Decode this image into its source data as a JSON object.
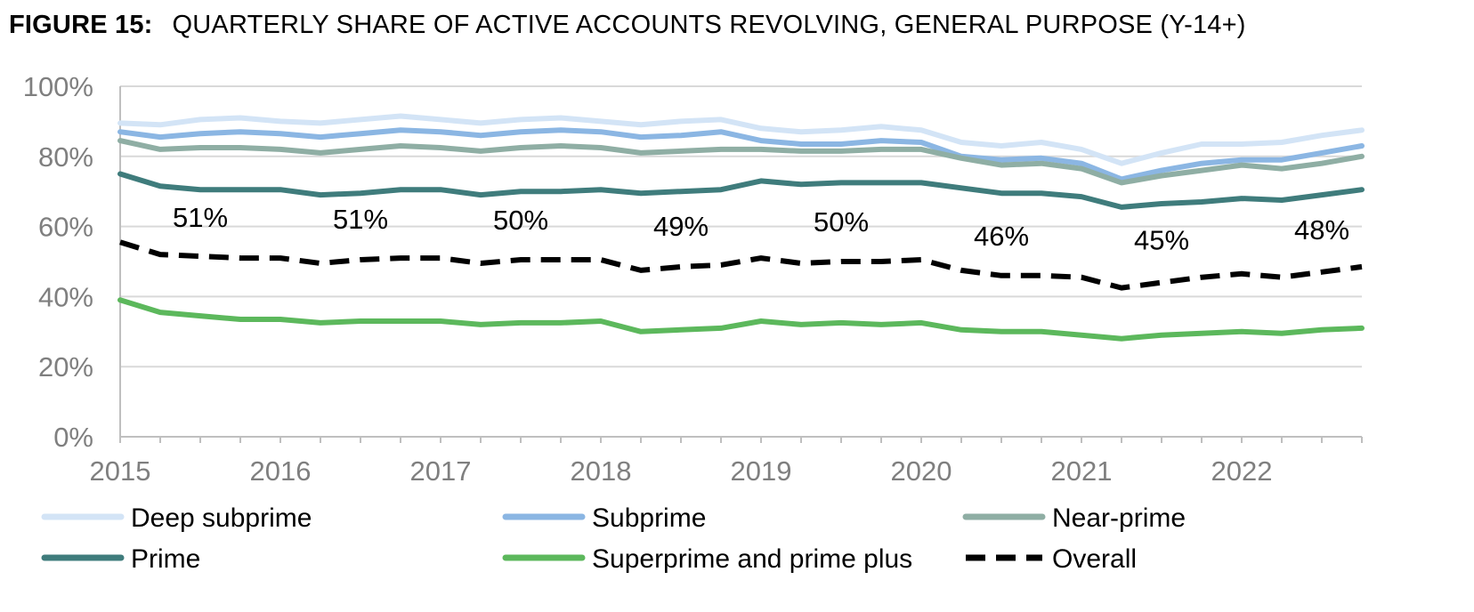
{
  "figure": {
    "label": "FIGURE 15:",
    "title": "QUARTERLY SHARE OF ACTIVE ACCOUNTS REVOLVING, GENERAL PURPOSE (Y-14+)"
  },
  "chart_data": {
    "type": "line",
    "title": "QUARTERLY SHARE OF ACTIVE ACCOUNTS REVOLVING, GENERAL PURPOSE (Y-14+)",
    "xlabel": "",
    "ylabel": "",
    "ylim": [
      0,
      100
    ],
    "yticks": [
      0,
      20,
      40,
      60,
      80,
      100
    ],
    "ytick_labels": [
      "0%",
      "20%",
      "40%",
      "60%",
      "80%",
      "100%"
    ],
    "xtick_labels": [
      "2015",
      "2016",
      "2017",
      "2018",
      "2019",
      "2020",
      "2021",
      "2022"
    ],
    "grid": true,
    "legend_position": "bottom",
    "x": [
      "2015Q1",
      "2015Q2",
      "2015Q3",
      "2015Q4",
      "2016Q1",
      "2016Q2",
      "2016Q3",
      "2016Q4",
      "2017Q1",
      "2017Q2",
      "2017Q3",
      "2017Q4",
      "2018Q1",
      "2018Q2",
      "2018Q3",
      "2018Q4",
      "2019Q1",
      "2019Q2",
      "2019Q3",
      "2019Q4",
      "2020Q1",
      "2020Q2",
      "2020Q3",
      "2020Q4",
      "2021Q1",
      "2021Q2",
      "2021Q3",
      "2021Q4",
      "2022Q1",
      "2022Q2",
      "2022Q3",
      "2022Q4"
    ],
    "series": [
      {
        "name": "Deep subprime",
        "color": "#d3e4f6",
        "dash": false,
        "values": [
          89.5,
          89.0,
          90.5,
          91.0,
          90.0,
          89.5,
          90.5,
          91.5,
          90.5,
          89.5,
          90.5,
          91.0,
          90.0,
          89.0,
          90.0,
          90.5,
          88.0,
          87.0,
          87.5,
          88.5,
          87.5,
          84.0,
          83.0,
          84.0,
          82.0,
          78.0,
          81.0,
          83.5,
          83.5,
          84.0,
          86.0,
          87.5
        ]
      },
      {
        "name": "Subprime",
        "color": "#8bb6e3",
        "dash": false,
        "values": [
          87.0,
          85.5,
          86.5,
          87.0,
          86.5,
          85.5,
          86.5,
          87.5,
          87.0,
          86.0,
          87.0,
          87.5,
          87.0,
          85.5,
          86.0,
          87.0,
          84.5,
          83.5,
          83.5,
          84.5,
          84.0,
          80.0,
          79.0,
          79.5,
          78.0,
          73.5,
          76.0,
          78.0,
          79.0,
          79.0,
          81.0,
          83.0
        ]
      },
      {
        "name": "Near-prime",
        "color": "#8faea4",
        "dash": false,
        "values": [
          84.5,
          82.0,
          82.5,
          82.5,
          82.0,
          81.0,
          82.0,
          83.0,
          82.5,
          81.5,
          82.5,
          83.0,
          82.5,
          81.0,
          81.5,
          82.0,
          82.0,
          81.5,
          81.5,
          82.0,
          82.0,
          79.5,
          77.5,
          78.0,
          76.5,
          72.5,
          74.5,
          76.0,
          77.5,
          76.5,
          78.0,
          80.0
        ]
      },
      {
        "name": "Prime",
        "color": "#3f7c7c",
        "dash": false,
        "values": [
          75.0,
          71.5,
          70.5,
          70.5,
          70.5,
          69.0,
          69.5,
          70.5,
          70.5,
          69.0,
          70.0,
          70.0,
          70.5,
          69.5,
          70.0,
          70.5,
          73.0,
          72.0,
          72.5,
          72.5,
          72.5,
          71.0,
          69.5,
          69.5,
          68.5,
          65.5,
          66.5,
          67.0,
          68.0,
          67.5,
          69.0,
          70.5
        ]
      },
      {
        "name": "Superprime and prime plus",
        "color": "#5cb85c",
        "dash": false,
        "values": [
          39.0,
          35.5,
          34.5,
          33.5,
          33.5,
          32.5,
          33.0,
          33.0,
          33.0,
          32.0,
          32.5,
          32.5,
          33.0,
          30.0,
          30.5,
          31.0,
          33.0,
          32.0,
          32.5,
          32.0,
          32.5,
          30.5,
          30.0,
          30.0,
          29.0,
          28.0,
          29.0,
          29.5,
          30.0,
          29.5,
          30.5,
          31.0
        ]
      },
      {
        "name": "Overall",
        "color": "#000000",
        "dash": true,
        "values": [
          55.5,
          52.0,
          51.5,
          51.0,
          51.0,
          49.5,
          50.5,
          51.0,
          51.0,
          49.5,
          50.5,
          50.5,
          50.5,
          47.5,
          48.5,
          49.0,
          51.0,
          49.5,
          50.0,
          50.0,
          50.5,
          47.5,
          46.0,
          46.0,
          45.5,
          42.5,
          44.0,
          45.5,
          46.5,
          45.5,
          47.0,
          48.5
        ]
      }
    ],
    "annotations": [
      {
        "text": "51%",
        "year_index": 0
      },
      {
        "text": "51%",
        "year_index": 1
      },
      {
        "text": "50%",
        "year_index": 2
      },
      {
        "text": "49%",
        "year_index": 3
      },
      {
        "text": "50%",
        "year_index": 4
      },
      {
        "text": "46%",
        "year_index": 5
      },
      {
        "text": "45%",
        "year_index": 6
      },
      {
        "text": "48%",
        "year_index": 7
      }
    ]
  }
}
